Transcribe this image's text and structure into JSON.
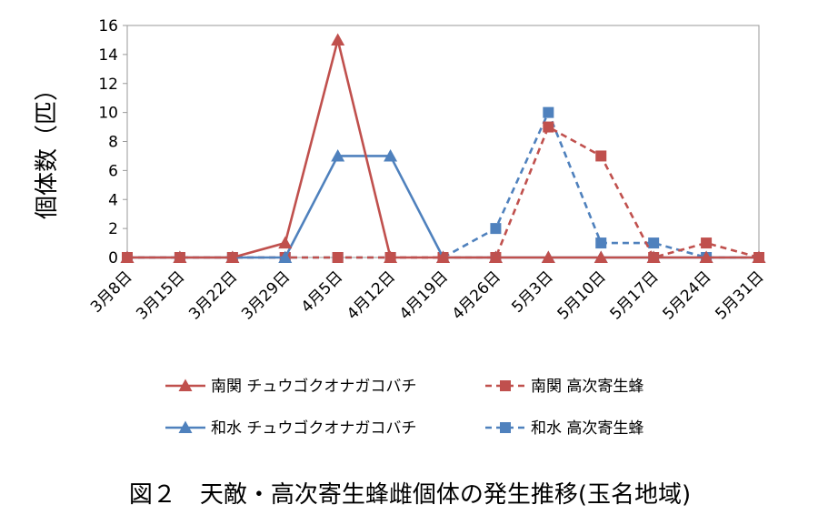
{
  "chart_data": {
    "type": "line",
    "title": "",
    "xlabel": "",
    "ylabel": "個体数（匹）",
    "ylim": [
      0,
      16
    ],
    "yticks": [
      "0",
      "2",
      "4",
      "6",
      "8",
      "10",
      "12",
      "14",
      "16"
    ],
    "ytick_values": [
      0,
      2,
      4,
      6,
      8,
      10,
      12,
      14,
      16
    ],
    "categories": [
      "3月8日",
      "3月15日",
      "3月22日",
      "3月29日",
      "4月5日",
      "4月12日",
      "4月19日",
      "4月26日",
      "5月3日",
      "5月10日",
      "5月17日",
      "5月24日",
      "5月31日"
    ],
    "grid": false,
    "legend_position": "bottom",
    "series": [
      {
        "name": "南関 チュウゴクオナガコバチ",
        "color": "#c0504d",
        "dash": false,
        "marker": "triangle",
        "values": [
          0,
          0,
          0,
          1,
          15,
          0,
          0,
          0,
          0,
          0,
          0,
          0,
          0
        ]
      },
      {
        "name": "南関 高次寄生蜂",
        "color": "#c0504d",
        "dash": true,
        "marker": "square",
        "values": [
          0,
          0,
          0,
          0,
          0,
          0,
          0,
          0,
          9,
          7,
          0,
          1,
          0
        ]
      },
      {
        "name": "和水 チュウゴクオナガコバチ",
        "color": "#4f81bd",
        "dash": false,
        "marker": "triangle",
        "values": [
          0,
          0,
          0,
          0,
          7,
          7,
          0,
          0,
          0,
          0,
          0,
          0,
          0
        ]
      },
      {
        "name": "和水 高次寄生蜂",
        "color": "#4f81bd",
        "dash": true,
        "marker": "square",
        "values": [
          0,
          0,
          0,
          0,
          0,
          0,
          0,
          2,
          10,
          1,
          1,
          0,
          0
        ]
      }
    ]
  },
  "caption": "図２　天敵・高次寄生蜂雌個体の発生推移(玉名地域)"
}
